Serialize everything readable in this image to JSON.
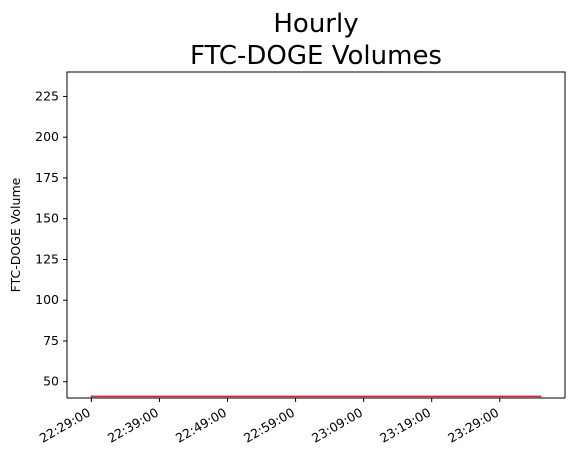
{
  "chart_data": {
    "type": "line",
    "title_lines": [
      "Hourly",
      "FTC-DOGE Volumes"
    ],
    "xlabel": "",
    "ylabel": "FTC-DOGE Volume",
    "ylim": [
      40,
      240
    ],
    "yticks": [
      50,
      75,
      100,
      125,
      150,
      175,
      200,
      225
    ],
    "xlim": [
      "22:25:25",
      "23:38:35"
    ],
    "xticks": [
      "22:29:00",
      "22:39:00",
      "22:49:00",
      "22:59:00",
      "23:09:00",
      "23:19:00",
      "23:29:00"
    ],
    "grid": false,
    "series": [
      {
        "color": "#d62728",
        "x": [
          "22:29:00",
          "23:35:00"
        ],
        "y": [
          41,
          41
        ]
      }
    ]
  }
}
